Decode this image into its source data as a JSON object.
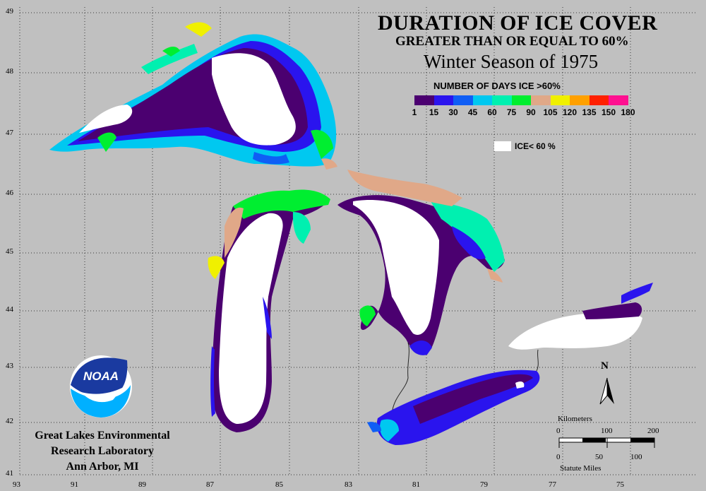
{
  "title": {
    "line1": "DURATION OF ICE COVER",
    "line2": "GREATER THAN OR EQUAL TO 60%",
    "line3": "Winter Season of 1975"
  },
  "legend": {
    "title": "NUMBER OF DAYS ICE >60%",
    "colors": [
      "#4b0070",
      "#2a14ee",
      "#0f5ef5",
      "#00c8f0",
      "#00f0b0",
      "#00ee30",
      "#e0a888",
      "#f0f000",
      "#ffa000",
      "#ff2000",
      "#ff1090"
    ],
    "labels": [
      "1",
      "15",
      "30",
      "45",
      "60",
      "75",
      "90",
      "105",
      "120",
      "135",
      "150",
      "180"
    ],
    "ice_label": "ICE< 60 %"
  },
  "axes": {
    "latitude_labels": [
      "49",
      "48",
      "47",
      "46",
      "45",
      "44",
      "43",
      "42",
      "41"
    ],
    "longitude_labels": [
      "93",
      "91",
      "89",
      "87",
      "85",
      "83",
      "81",
      "79",
      "77",
      "75"
    ]
  },
  "logo": {
    "text": "NOAA"
  },
  "lab": {
    "line1": "Great Lakes Environmental",
    "line2": "Research Laboratory",
    "line3": "Ann Arbor, MI"
  },
  "scale": {
    "km_label": "Kilometers",
    "km_ticks": [
      "0",
      "100",
      "200"
    ],
    "mi_label": "Statute Miles",
    "mi_ticks": [
      "0",
      "50",
      "100"
    ]
  },
  "north_arrow": {
    "label": "N"
  }
}
